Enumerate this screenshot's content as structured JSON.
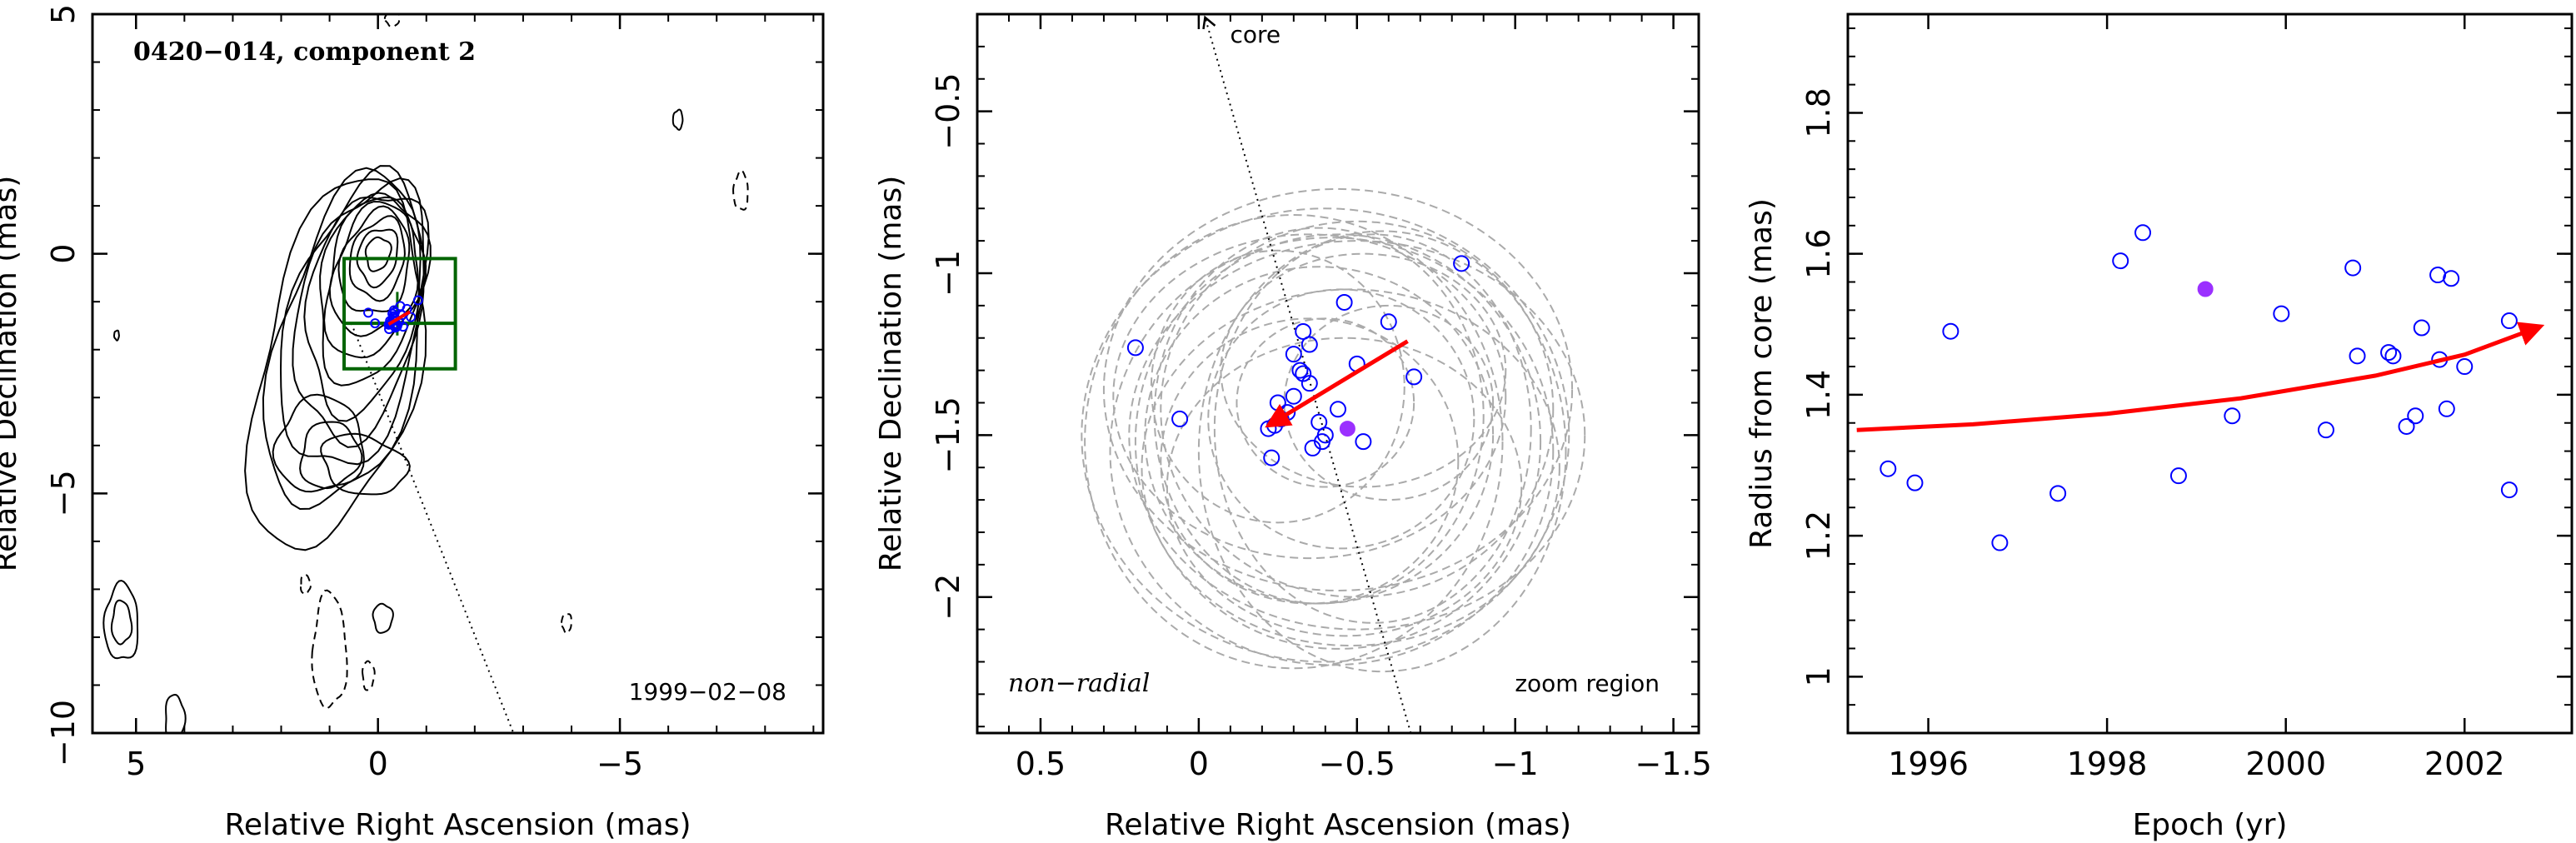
{
  "chart_data": [
    {
      "type": "contour",
      "title": "0420−014, component 2",
      "date": "1999−02−08",
      "xlabel": "Relative Right Ascension (mas)",
      "ylabel": "Relative Declination (mas)",
      "xlim": [
        5.9,
        -9.2
      ],
      "ylim": [
        -10,
        5
      ],
      "xticks": [
        5,
        0,
        -5
      ],
      "xtick_labels": [
        "5",
        "0",
        "−5"
      ],
      "yticks": [
        5,
        0,
        -5,
        -10
      ],
      "ytick_labels": [
        "5",
        "0",
        "−5",
        "−10"
      ],
      "zoom_box": {
        "x": [
          0.7,
          -1.6
        ],
        "y": [
          -2.4,
          -0.1
        ]
      },
      "core_line": {
        "from": [
          0.55,
          -1.45
        ],
        "to": [
          -2.8,
          -10
        ]
      }
    },
    {
      "type": "scatter",
      "annotation_left": "non−radial",
      "annotation_right": "zoom region",
      "core_label": "core",
      "xlabel": "Relative Right Ascension (mas)",
      "ylabel": "Relative Declination (mas)",
      "xlim": [
        0.7,
        -1.58
      ],
      "ylim": [
        -2.42,
        -0.2
      ],
      "xticks": [
        0.5,
        0,
        -0.5,
        -1,
        -1.5
      ],
      "xtick_labels": [
        "0.5",
        "0",
        "−0.5",
        "−1",
        "−1.5"
      ],
      "yticks": [
        -0.5,
        -1,
        -1.5,
        -2
      ],
      "ytick_labels": [
        "−0.5",
        "−1",
        "−1.5",
        "−2"
      ],
      "points": [
        [
          -0.83,
          -0.97
        ],
        [
          -0.46,
          -1.09
        ],
        [
          -0.6,
          -1.15
        ],
        [
          -0.33,
          -1.18
        ],
        [
          -0.35,
          -1.22
        ],
        [
          0.2,
          -1.23
        ],
        [
          -0.3,
          -1.25
        ],
        [
          -0.5,
          -1.28
        ],
        [
          -0.32,
          -1.3
        ],
        [
          -0.68,
          -1.32
        ],
        [
          -0.33,
          -1.31
        ],
        [
          -0.35,
          -1.34
        ],
        [
          -0.3,
          -1.38
        ],
        [
          -0.25,
          -1.4
        ],
        [
          -0.28,
          -1.43
        ],
        [
          -0.26,
          -1.45
        ],
        [
          -0.44,
          -1.42
        ],
        [
          0.06,
          -1.45
        ],
        [
          -0.38,
          -1.46
        ],
        [
          -0.24,
          -1.47
        ],
        [
          -0.22,
          -1.48
        ],
        [
          -0.4,
          -1.5
        ],
        [
          -0.52,
          -1.52
        ],
        [
          -0.39,
          -1.52
        ],
        [
          -0.36,
          -1.54
        ],
        [
          -0.23,
          -1.57
        ]
      ],
      "highlight_point": [
        -0.47,
        -1.48
      ],
      "arrow": {
        "from": [
          -0.66,
          -1.21
        ],
        "to": [
          -0.22,
          -1.47
        ]
      },
      "ellipses": [
        {
          "cx": -0.4,
          "cy": -1.4,
          "rx": 0.28,
          "ry": 0.26
        },
        {
          "cx": -0.45,
          "cy": -1.45,
          "rx": 0.42,
          "ry": 0.4
        },
        {
          "cx": -0.38,
          "cy": -1.5,
          "rx": 0.55,
          "ry": 0.52
        },
        {
          "cx": -0.5,
          "cy": -1.42,
          "rx": 0.62,
          "ry": 0.58
        },
        {
          "cx": -0.42,
          "cy": -1.55,
          "rx": 0.7,
          "ry": 0.66
        },
        {
          "cx": -0.55,
          "cy": -1.48,
          "rx": 0.5,
          "ry": 0.6
        },
        {
          "cx": -0.35,
          "cy": -1.38,
          "rx": 0.62,
          "ry": 0.5
        },
        {
          "cx": -0.48,
          "cy": -1.6,
          "rx": 0.66,
          "ry": 0.55
        },
        {
          "cx": -0.44,
          "cy": -1.36,
          "rx": 0.74,
          "ry": 0.62
        },
        {
          "cx": -0.3,
          "cy": -1.52,
          "rx": 0.66,
          "ry": 0.7
        },
        {
          "cx": -0.58,
          "cy": -1.55,
          "rx": 0.58,
          "ry": 0.68
        },
        {
          "cx": -0.4,
          "cy": -1.5,
          "rx": 0.77,
          "ry": 0.7
        },
        {
          "cx": -0.52,
          "cy": -1.3,
          "rx": 0.45,
          "ry": 0.36
        },
        {
          "cx": -0.35,
          "cy": -1.58,
          "rx": 0.47,
          "ry": 0.44
        },
        {
          "cx": -0.6,
          "cy": -1.4,
          "rx": 0.33,
          "ry": 0.3
        },
        {
          "cx": -0.25,
          "cy": -1.35,
          "rx": 0.4,
          "ry": 0.42
        },
        {
          "cx": -0.46,
          "cy": -1.66,
          "rx": 0.56,
          "ry": 0.46
        },
        {
          "cx": -0.5,
          "cy": -1.5,
          "rx": 0.72,
          "ry": 0.6
        },
        {
          "cx": -0.38,
          "cy": -1.44,
          "rx": 0.52,
          "ry": 0.58
        },
        {
          "cx": -0.44,
          "cy": -1.52,
          "rx": 0.64,
          "ry": 0.64
        }
      ]
    },
    {
      "type": "scatter",
      "xlabel": "Epoch (yr)",
      "ylabel": "Radius from core (mas)",
      "xlim": [
        1995.1,
        2003.2
      ],
      "ylim": [
        0.92,
        1.94
      ],
      "xticks": [
        1996,
        1998,
        2000,
        2002
      ],
      "xtick_labels": [
        "1996",
        "1998",
        "2000",
        "2002"
      ],
      "yticks": [
        1,
        1.2,
        1.4,
        1.6,
        1.8
      ],
      "ytick_labels": [
        "1",
        "1.2",
        "1.4",
        "1.6",
        "1.8"
      ],
      "points": [
        [
          1995.55,
          1.295
        ],
        [
          1995.85,
          1.275
        ],
        [
          1996.25,
          1.49
        ],
        [
          1996.8,
          1.19
        ],
        [
          1997.45,
          1.26
        ],
        [
          1998.15,
          1.59
        ],
        [
          1998.4,
          1.63
        ],
        [
          1998.8,
          1.285
        ],
        [
          1999.4,
          1.37
        ],
        [
          1999.95,
          1.515
        ],
        [
          2000.45,
          1.35
        ],
        [
          2000.75,
          1.58
        ],
        [
          2000.8,
          1.455
        ],
        [
          2001.15,
          1.46
        ],
        [
          2001.2,
          1.455
        ],
        [
          2001.35,
          1.355
        ],
        [
          2001.45,
          1.37
        ],
        [
          2001.52,
          1.495
        ],
        [
          2001.7,
          1.57
        ],
        [
          2001.72,
          1.45
        ],
        [
          2001.8,
          1.38
        ],
        [
          2001.85,
          1.565
        ],
        [
          2002.0,
          1.44
        ],
        [
          2002.5,
          1.505
        ],
        [
          2002.5,
          1.265
        ]
      ],
      "highlight_point": [
        1999.1,
        1.55
      ],
      "fit_curve": {
        "x": [
          1995.2,
          1996.5,
          1998.0,
          1999.5,
          2001.0,
          2002.0,
          2002.85
        ],
        "y": [
          1.35,
          1.358,
          1.373,
          1.395,
          1.427,
          1.457,
          1.497
        ]
      }
    }
  ]
}
